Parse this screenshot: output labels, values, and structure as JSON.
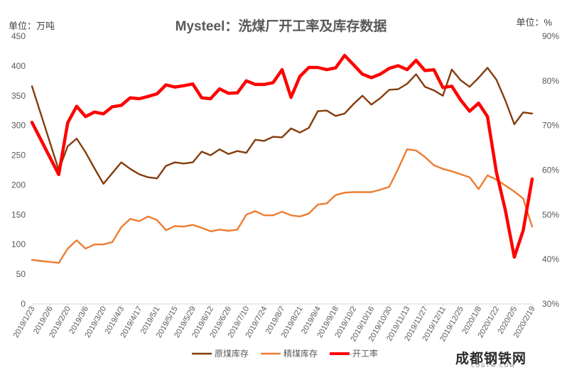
{
  "chart_data": {
    "type": "line",
    "title": "Mysteel：洗煤厂开工率及库存数据",
    "left_unit": "单位：万吨",
    "right_unit": "单位：%",
    "yleft": {
      "min": 0,
      "max": 450,
      "ticks": [
        0,
        50,
        100,
        150,
        200,
        250,
        300,
        350,
        400,
        450
      ]
    },
    "yright": {
      "min": 30,
      "max": 90,
      "ticks": [
        "30%",
        "40%",
        "50%",
        "60%",
        "70%",
        "80%",
        "90%"
      ]
    },
    "x_tick_labels": [
      "2019/1/23",
      "2019/2/6",
      "2019/2/20",
      "2019/3/6",
      "2019/3/20",
      "2019/4/3",
      "2019/4/17",
      "2019/5/1",
      "2019/5/15",
      "2019/5/29",
      "2019/6/12",
      "2019/6/26",
      "2019/7/10",
      "2019/7/24",
      "2019/8/7",
      "2019/8/21",
      "2019/9/4",
      "2019/9/18",
      "2019/10/2",
      "2019/10/16",
      "2019/10/30",
      "2019/11/13",
      "2019/11/27",
      "2019/12/11",
      "2019/12/25",
      "2020/1/8",
      "2020/1/22",
      "2020/2/5",
      "2020/2/19"
    ],
    "x_dates": [
      "2019/1/23",
      "2019/2/13",
      "2019/2/20",
      "2019/2/27",
      "2019/3/6",
      "2019/3/13",
      "2019/3/20",
      "2019/3/27",
      "2019/4/3",
      "2019/4/10",
      "2019/4/17",
      "2019/4/24",
      "2019/5/1",
      "2019/5/8",
      "2019/5/15",
      "2019/5/22",
      "2019/5/29",
      "2019/6/5",
      "2019/6/12",
      "2019/6/19",
      "2019/6/26",
      "2019/7/3",
      "2019/7/10",
      "2019/7/17",
      "2019/7/24",
      "2019/7/31",
      "2019/8/7",
      "2019/8/14",
      "2019/8/21",
      "2019/8/28",
      "2019/9/4",
      "2019/9/11",
      "2019/9/18",
      "2019/9/25",
      "2019/10/2",
      "2019/10/9",
      "2019/10/16",
      "2019/10/23",
      "2019/10/30",
      "2019/11/6",
      "2019/11/13",
      "2019/11/20",
      "2019/11/27",
      "2019/12/4",
      "2019/12/11",
      "2019/12/18",
      "2019/12/25",
      "2020/1/1",
      "2020/1/8",
      "2020/1/15",
      "2020/1/22",
      "2020/1/29",
      "2020/2/5",
      "2020/2/12",
      "2020/2/19"
    ],
    "series": [
      {
        "name": "原煤库存",
        "axis": "left",
        "color": "#843C0C",
        "values": [
          366,
          225,
          265,
          278,
          255,
          228,
          202,
          220,
          238,
          227,
          218,
          213,
          211,
          232,
          238,
          236,
          238,
          256,
          250,
          260,
          252,
          257,
          254,
          276,
          274,
          281,
          280,
          295,
          288,
          296,
          324,
          325,
          316,
          320,
          336,
          350,
          335,
          346,
          360,
          361,
          370,
          386,
          365,
          359,
          350,
          394,
          376,
          365,
          380,
          397,
          377,
          342,
          302,
          322,
          320
        ]
      },
      {
        "name": "精煤库存",
        "axis": "left",
        "color": "#ED7D31",
        "values": [
          74,
          69,
          93,
          107,
          93,
          100,
          100,
          104,
          129,
          143,
          139,
          147,
          141,
          124,
          131,
          130,
          133,
          128,
          122,
          125,
          123,
          125,
          150,
          156,
          149,
          149,
          155,
          149,
          147,
          152,
          167,
          169,
          183,
          187,
          188,
          188,
          188,
          192,
          197,
          227,
          260,
          258,
          247,
          233,
          227,
          223,
          218,
          213,
          193,
          216,
          209,
          199,
          189,
          177,
          130
        ]
      },
      {
        "name": "开工率",
        "axis": "right",
        "color": "#FF0000",
        "values": [
          70.7,
          59.0,
          70.6,
          74.3,
          72.0,
          73.0,
          72.6,
          74.2,
          74.5,
          76.2,
          76.0,
          76.5,
          77.1,
          79.1,
          78.6,
          78.9,
          79.3,
          76.2,
          76.0,
          78.2,
          77.2,
          77.3,
          80.0,
          79.2,
          79.2,
          79.6,
          82.5,
          76.3,
          81.0,
          83.0,
          83.0,
          82.5,
          82.9,
          85.7,
          83.6,
          81.5,
          80.7,
          81.5,
          82.8,
          83.4,
          82.5,
          84.6,
          82.3,
          82.5,
          78.5,
          78.8,
          75.7,
          73.2,
          75.0,
          72.0,
          59.5,
          51.0,
          40.5,
          46.5,
          58.0
        ]
      }
    ],
    "legend": {
      "position": "bottom"
    },
    "grid": false
  },
  "watermark": {
    "text": "成都钢铁网",
    "url": "CDGTW.COM"
  }
}
